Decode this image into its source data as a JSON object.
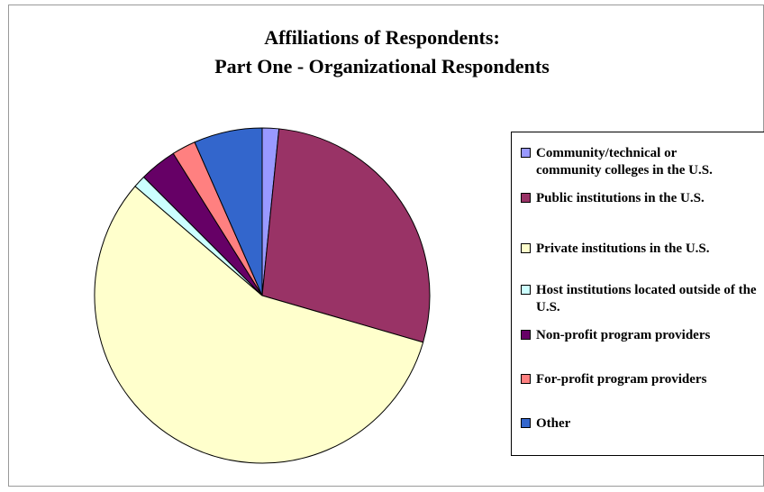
{
  "chart_data": {
    "type": "pie",
    "title": [
      "Affiliations of Respondents:",
      "Part One - Organizational Respondents"
    ],
    "start_angle_deg": 0,
    "direction": "clockwise",
    "legend_position": "right",
    "slices": [
      {
        "label": "Community/technical or community colleges in the U.S.",
        "value": 1.6,
        "color": "#9999FF"
      },
      {
        "label": "Public institutions in the U.S.",
        "value": 27.9,
        "color": "#993366"
      },
      {
        "label": "Private institutions in the U.S.",
        "value": 56.8,
        "color": "#FFFFCC"
      },
      {
        "label": "Host institutions located outside of the U.S.",
        "value": 1.2,
        "color": "#CCFFFF"
      },
      {
        "label": "Non-profit program providers",
        "value": 3.6,
        "color": "#660066"
      },
      {
        "label": "For-profit program providers",
        "value": 2.3,
        "color": "#FF8080"
      },
      {
        "label": "Other",
        "value": 6.6,
        "color": "#3366CC"
      }
    ]
  }
}
